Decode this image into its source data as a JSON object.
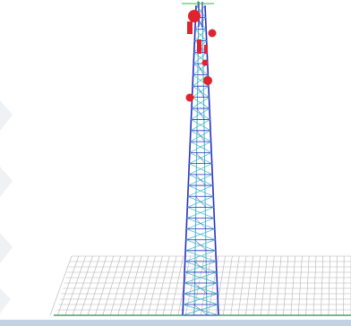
{
  "scene": {
    "subject": "lattice-telecom-tower",
    "colors": {
      "background": "#ffffff",
      "watermark": "#f0f1f3",
      "grid": "#b4b4b4",
      "ground_line": "#2f8a4e",
      "bottom_bar": "#c3d2e2",
      "tower_outline": "#2a2ec2",
      "tower_inner": "#3fb6c8",
      "antenna": "#e0232d",
      "axis_marker": "#39b54a"
    },
    "antenna_dishes": 5,
    "panel_antennas": 3
  }
}
